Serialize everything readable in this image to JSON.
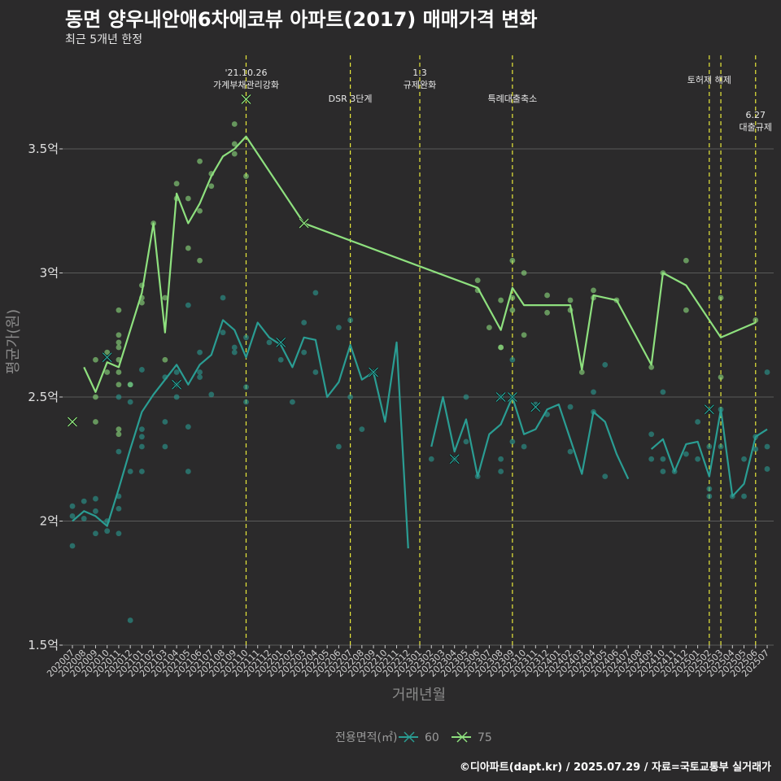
{
  "header": {
    "title": "동면 양우내안애6차에코뷰 아파트(2017) 매매가격 변화",
    "subtitle": "최근 5개년 한정",
    "caption": "©디아파트(dapt.kr) / 2025.07.29 / 자료=국토교통부 실거래가"
  },
  "colors": {
    "background": "#2b2a2b",
    "series_60": "#2a9d93",
    "series_75": "#8ee07e",
    "event_line": "#e8e83a",
    "grid": "#5a5a5a"
  },
  "chart_data": {
    "type": "line",
    "title": "동면 양우내안애6차에코뷰 아파트(2017) 매매가격 변화",
    "subtitle": "최근 5개년 한정",
    "xlabel": "거래년월",
    "ylabel": "평균가(원)",
    "ylim": [
      1.5,
      3.9
    ],
    "grid": true,
    "legend_position": "bottom",
    "legend_title": "전용면적(㎡)",
    "y_ticks": [
      {
        "value": 1.5,
        "label": "1.5억"
      },
      {
        "value": 2.0,
        "label": "2억"
      },
      {
        "value": 2.5,
        "label": "2.5억"
      },
      {
        "value": 3.0,
        "label": "3억"
      },
      {
        "value": 3.5,
        "label": "3.5억"
      }
    ],
    "categories": [
      "202007",
      "202008",
      "202009",
      "202010",
      "202011",
      "202012",
      "202101",
      "202102",
      "202103",
      "202104",
      "202105",
      "202106",
      "202107",
      "202108",
      "202109",
      "202110",
      "202111",
      "202112",
      "202201",
      "202202",
      "202203",
      "202204",
      "202205",
      "202206",
      "202207",
      "202208",
      "202209",
      "202210",
      "202211",
      "202212",
      "202301",
      "202302",
      "202303",
      "202304",
      "202305",
      "202306",
      "202307",
      "202308",
      "202309",
      "202310",
      "202311",
      "202312",
      "202401",
      "202402",
      "202403",
      "202404",
      "202405",
      "202406",
      "202407",
      "202408",
      "202409",
      "202410",
      "202411",
      "202412",
      "202501",
      "202502",
      "202503",
      "202504",
      "202505",
      "202506",
      "202507"
    ],
    "events": [
      {
        "category": "202110",
        "label": "'21.10.26\n가계부채관리강화",
        "label_row": 0
      },
      {
        "category": "202207",
        "label": "DSR 3단계",
        "label_row": 1
      },
      {
        "category": "202301",
        "label": "1.3\n규제완화",
        "label_row": 0
      },
      {
        "category": "202309",
        "label": "특례대출축소",
        "label_row": 1
      },
      {
        "category": "202502",
        "label": "토허제 해제",
        "label_row": 0
      },
      {
        "category": "202503",
        "label": "",
        "label_row": 0
      },
      {
        "category": "202506",
        "label": "6.27\n대출규제",
        "label_row": 2
      }
    ],
    "series": [
      {
        "name": "60",
        "line": [
          [
            "202007",
            2.0
          ],
          [
            "202008",
            2.04
          ],
          [
            "202009",
            2.02
          ],
          [
            "202010",
            1.98
          ],
          [
            "202011",
            2.13
          ],
          [
            "202012",
            2.29
          ],
          [
            "202101",
            2.44
          ],
          [
            "202102",
            2.51
          ],
          [
            "202103",
            2.57
          ],
          [
            "202104",
            2.63
          ],
          [
            "202105",
            2.55
          ],
          [
            "202106",
            2.63
          ],
          [
            "202107",
            2.67
          ],
          [
            "202108",
            2.81
          ],
          [
            "202109",
            2.77
          ],
          [
            "202110",
            2.66
          ],
          [
            "202111",
            2.8
          ],
          [
            "202112",
            2.74
          ],
          [
            "202201",
            2.71
          ],
          [
            "202202",
            2.62
          ],
          [
            "202203",
            2.74
          ],
          [
            "202204",
            2.73
          ],
          [
            "202205",
            2.5
          ],
          [
            "202206",
            2.56
          ],
          [
            "202207",
            2.71
          ],
          [
            "202208",
            2.57
          ],
          [
            "202209",
            2.6
          ],
          [
            "202210",
            2.4
          ],
          [
            "202211",
            2.72
          ],
          [
            "202212",
            1.89
          ],
          null,
          [
            "202302",
            2.3
          ],
          [
            "202303",
            2.5
          ],
          [
            "202304",
            2.28
          ],
          [
            "202305",
            2.41
          ],
          [
            "202306",
            2.18
          ],
          [
            "202307",
            2.35
          ],
          [
            "202308",
            2.39
          ],
          [
            "202309",
            2.5
          ],
          [
            "202310",
            2.35
          ],
          [
            "202311",
            2.37
          ],
          [
            "202312",
            2.45
          ],
          [
            "202401",
            2.47
          ],
          [
            "202402",
            2.33
          ],
          [
            "202403",
            2.19
          ],
          [
            "202404",
            2.44
          ],
          [
            "202405",
            2.4
          ],
          [
            "202406",
            2.27
          ],
          [
            "202407",
            2.17
          ],
          null,
          [
            "202409",
            2.29
          ],
          [
            "202410",
            2.33
          ],
          [
            "202411",
            2.2
          ],
          [
            "202412",
            2.31
          ],
          [
            "202501",
            2.32
          ],
          [
            "202502",
            2.18
          ],
          [
            "202503",
            2.45
          ],
          [
            "202504",
            2.1
          ],
          [
            "202505",
            2.15
          ],
          [
            "202506",
            2.34
          ],
          [
            "202507",
            2.37
          ]
        ],
        "points": [
          [
            "202007",
            2.02
          ],
          [
            "202007",
            1.9
          ],
          [
            "202007",
            2.06
          ],
          [
            "202008",
            2.08
          ],
          [
            "202008",
            2.01
          ],
          [
            "202009",
            2.09
          ],
          [
            "202009",
            2.04
          ],
          [
            "202009",
            1.95
          ],
          [
            "202010",
            2.0
          ],
          [
            "202010",
            1.96
          ],
          [
            "202011",
            2.1
          ],
          [
            "202011",
            2.05
          ],
          [
            "202011",
            1.95
          ],
          [
            "202011",
            2.28
          ],
          [
            "202011",
            2.5
          ],
          [
            "202012",
            2.55
          ],
          [
            "202012",
            2.48
          ],
          [
            "202012",
            1.6
          ],
          [
            "202012",
            2.2
          ],
          [
            "202101",
            2.61
          ],
          [
            "202101",
            2.37
          ],
          [
            "202101",
            2.3
          ],
          [
            "202101",
            2.2
          ],
          [
            "202101",
            2.34
          ],
          [
            "202103",
            2.4
          ],
          [
            "202103",
            2.3
          ],
          [
            "202103",
            2.58
          ],
          [
            "202104",
            2.55
          ],
          [
            "202104",
            2.5
          ],
          [
            "202104",
            2.6
          ],
          [
            "202105",
            2.87
          ],
          [
            "202105",
            2.38
          ],
          [
            "202105",
            2.2
          ],
          [
            "202106",
            2.6
          ],
          [
            "202106",
            2.58
          ],
          [
            "202106",
            2.68
          ],
          [
            "202107",
            2.51
          ],
          [
            "202108",
            2.76
          ],
          [
            "202108",
            2.9
          ],
          [
            "202109",
            2.7
          ],
          [
            "202109",
            2.68
          ],
          [
            "202110",
            2.74
          ],
          [
            "202110",
            2.54
          ],
          [
            "202110",
            2.48
          ],
          [
            "202112",
            2.72
          ],
          [
            "202201",
            2.65
          ],
          [
            "202202",
            2.48
          ],
          [
            "202203",
            2.8
          ],
          [
            "202203",
            2.68
          ],
          [
            "202204",
            2.92
          ],
          [
            "202204",
            2.6
          ],
          [
            "202206",
            2.3
          ],
          [
            "202206",
            2.78
          ],
          [
            "202207",
            2.81
          ],
          [
            "202207",
            2.5
          ],
          [
            "202208",
            2.37
          ],
          [
            "202209",
            2.6
          ],
          [
            "202302",
            2.25
          ],
          [
            "202304",
            2.25
          ],
          [
            "202305",
            2.5
          ],
          [
            "202305",
            2.32
          ],
          [
            "202306",
            2.18
          ],
          [
            "202308",
            2.5
          ],
          [
            "202308",
            2.25
          ],
          [
            "202308",
            2.2
          ],
          [
            "202309",
            2.65
          ],
          [
            "202309",
            2.5
          ],
          [
            "202309",
            2.32
          ],
          [
            "202310",
            2.3
          ],
          [
            "202311",
            2.47
          ],
          [
            "202312",
            2.43
          ],
          [
            "202402",
            2.46
          ],
          [
            "202402",
            2.28
          ],
          [
            "202404",
            2.52
          ],
          [
            "202404",
            2.44
          ],
          [
            "202405",
            2.63
          ],
          [
            "202405",
            2.18
          ],
          [
            "202409",
            2.35
          ],
          [
            "202409",
            2.25
          ],
          [
            "202410",
            2.52
          ],
          [
            "202410",
            2.25
          ],
          [
            "202410",
            2.2
          ],
          [
            "202411",
            2.2
          ],
          [
            "202412",
            2.27
          ],
          [
            "202501",
            2.4
          ],
          [
            "202501",
            2.25
          ],
          [
            "202502",
            2.3
          ],
          [
            "202502",
            2.1
          ],
          [
            "202502",
            2.13
          ],
          [
            "202503",
            2.45
          ],
          [
            "202503",
            2.3
          ],
          [
            "202504",
            2.1
          ],
          [
            "202505",
            2.25
          ],
          [
            "202505",
            2.1
          ],
          [
            "202506",
            2.34
          ],
          [
            "202506",
            2.29
          ],
          [
            "202507",
            2.6
          ],
          [
            "202507",
            2.3
          ],
          [
            "202507",
            2.21
          ]
        ],
        "x_marks": [
          [
            "202010",
            2.66
          ],
          [
            "202104",
            2.55
          ],
          [
            "202201",
            2.72
          ],
          [
            "202209",
            2.6
          ],
          [
            "202304",
            2.25
          ],
          [
            "202308",
            2.5
          ],
          [
            "202309",
            2.5
          ],
          [
            "202311",
            2.46
          ],
          [
            "202502",
            2.45
          ]
        ]
      },
      {
        "name": "75",
        "line": [
          [
            "202008",
            2.62
          ],
          [
            "202009",
            2.52
          ],
          [
            "202010",
            2.64
          ],
          [
            "202011",
            2.62
          ],
          [
            "202101",
            2.92
          ],
          [
            "202102",
            3.2
          ],
          [
            "202103",
            2.76
          ],
          [
            "202104",
            3.32
          ],
          [
            "202105",
            3.2
          ],
          [
            "202106",
            3.28
          ],
          [
            "202107",
            3.39
          ],
          [
            "202108",
            3.47
          ],
          [
            "202109",
            3.5
          ],
          [
            "202110",
            3.55
          ],
          [
            "202203",
            3.2
          ],
          [
            "202306",
            2.94
          ],
          [
            "202308",
            2.77
          ],
          [
            "202309",
            2.94
          ],
          [
            "202310",
            2.87
          ],
          [
            "202402",
            2.87
          ],
          [
            "202403",
            2.61
          ],
          [
            "202404",
            2.91
          ],
          [
            "202406",
            2.89
          ],
          [
            "202409",
            2.63
          ],
          [
            "202410",
            3.0
          ],
          [
            "202412",
            2.95
          ],
          [
            "202503",
            2.74
          ],
          [
            "202506",
            2.8
          ]
        ],
        "points": [
          [
            "202010",
            2.68
          ],
          [
            "202010",
            2.6
          ],
          [
            "202009",
            2.4
          ],
          [
            "202009",
            2.5
          ],
          [
            "202009",
            2.65
          ],
          [
            "202011",
            2.85
          ],
          [
            "202011",
            2.75
          ],
          [
            "202011",
            2.72
          ],
          [
            "202011",
            2.7
          ],
          [
            "202011",
            2.65
          ],
          [
            "202011",
            2.6
          ],
          [
            "202011",
            2.55
          ],
          [
            "202011",
            2.37
          ],
          [
            "202011",
            2.35
          ],
          [
            "202012",
            2.55
          ],
          [
            "202101",
            2.95
          ],
          [
            "202101",
            2.9
          ],
          [
            "202101",
            2.88
          ],
          [
            "202102",
            3.2
          ],
          [
            "202103",
            2.9
          ],
          [
            "202103",
            2.65
          ],
          [
            "202104",
            3.36
          ],
          [
            "202104",
            3.3
          ],
          [
            "202105",
            3.3
          ],
          [
            "202105",
            3.1
          ],
          [
            "202106",
            3.45
          ],
          [
            "202106",
            3.25
          ],
          [
            "202106",
            3.05
          ],
          [
            "202107",
            3.4
          ],
          [
            "202107",
            3.35
          ],
          [
            "202109",
            3.6
          ],
          [
            "202109",
            3.52
          ],
          [
            "202109",
            3.48
          ],
          [
            "202110",
            3.39
          ],
          [
            "202306",
            2.97
          ],
          [
            "202306",
            2.93
          ],
          [
            "202307",
            2.78
          ],
          [
            "202308",
            2.89
          ],
          [
            "202308",
            2.7
          ],
          [
            "202308",
            2.7
          ],
          [
            "202309",
            3.05
          ],
          [
            "202309",
            2.9
          ],
          [
            "202309",
            2.85
          ],
          [
            "202310",
            3.0
          ],
          [
            "202310",
            2.75
          ],
          [
            "202312",
            2.91
          ],
          [
            "202312",
            2.84
          ],
          [
            "202402",
            2.89
          ],
          [
            "202402",
            2.85
          ],
          [
            "202403",
            2.6
          ],
          [
            "202404",
            2.93
          ],
          [
            "202404",
            2.9
          ],
          [
            "202406",
            2.89
          ],
          [
            "202409",
            2.62
          ],
          [
            "202410",
            3.0
          ],
          [
            "202412",
            3.05
          ],
          [
            "202412",
            2.85
          ],
          [
            "202503",
            2.9
          ],
          [
            "202503",
            2.58
          ],
          [
            "202506",
            2.81
          ]
        ],
        "x_marks": [
          [
            "202007",
            2.4
          ],
          [
            "202110",
            3.7
          ],
          [
            "202203",
            3.2
          ]
        ]
      }
    ]
  }
}
